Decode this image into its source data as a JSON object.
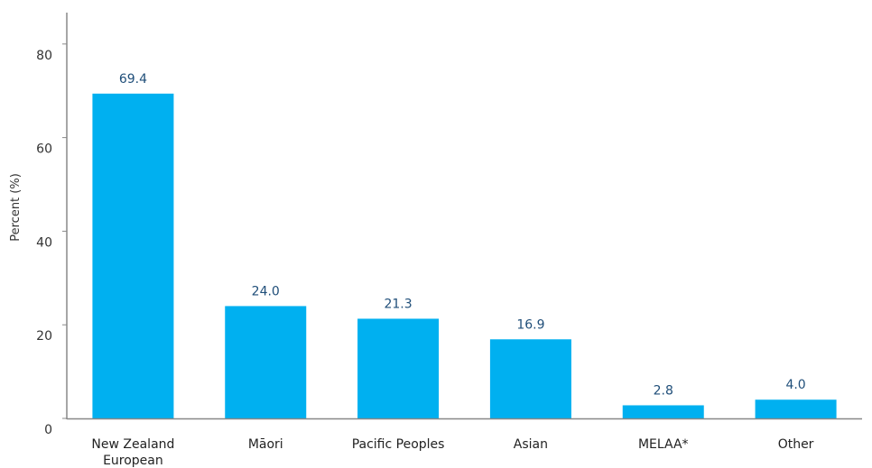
{
  "chart_data": {
    "type": "bar",
    "title": "",
    "xlabel": "",
    "ylabel": "Percent (%)",
    "ylim": [
      0,
      80
    ],
    "yticks": [
      0,
      20,
      40,
      60,
      80
    ],
    "grid": false,
    "categories": [
      [
        "New Zealand",
        "European"
      ],
      [
        "Māori"
      ],
      [
        "Pacific Peoples"
      ],
      [
        "Asian"
      ],
      [
        "MELAA*"
      ],
      [
        "Other"
      ]
    ],
    "values": [
      69.4,
      24.0,
      21.3,
      16.9,
      2.8,
      4.0
    ],
    "data_labels": [
      "69.4",
      "24.0",
      "21.3",
      "16.9",
      "2.8",
      "4.0"
    ],
    "colors": {
      "bar": "#00b0f0",
      "axis": "#888888",
      "data_label": "#1f4e79"
    }
  }
}
